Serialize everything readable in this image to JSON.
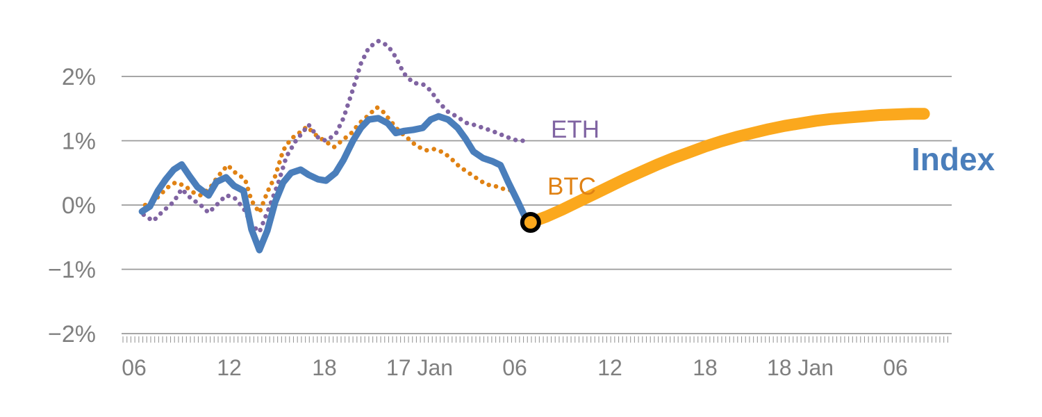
{
  "chart_data": {
    "type": "line",
    "title": "",
    "xlabel": "",
    "ylabel": "",
    "x_unit": "hours (x ticks are clock hours; 17 Jan / 18 Jan mark midnight of those dates)",
    "ylim": [
      -2,
      2
    ],
    "grid": "horizontal",
    "legend_position": "inline-labels",
    "y_ticks": [
      {
        "value": 2,
        "label": "2%"
      },
      {
        "value": 1,
        "label": "1%"
      },
      {
        "value": 0,
        "label": "0%"
      },
      {
        "value": -1,
        "label": "−1%"
      },
      {
        "value": -2,
        "label": "−2%"
      }
    ],
    "x_ticks": [
      {
        "hour": 6,
        "label": "06"
      },
      {
        "hour": 12,
        "label": "12"
      },
      {
        "hour": 18,
        "label": "18"
      },
      {
        "hour": 24,
        "label": "17 Jan"
      },
      {
        "hour": 30,
        "label": "06"
      },
      {
        "hour": 36,
        "label": "12"
      },
      {
        "hour": 42,
        "label": "18"
      },
      {
        "hour": 48,
        "label": "18 Jan"
      },
      {
        "hour": 54,
        "label": "06"
      }
    ],
    "colors": {
      "index": "#4A7EBB",
      "eth": "#8064A2",
      "btc": "#E08214",
      "forecast": "#FBA81D",
      "grid": "#9A9A9A",
      "axis_text": "#7F7F7F",
      "marker_ring": "#000000"
    },
    "labels": {
      "eth": "ETH",
      "btc": "BTC",
      "index": "Index"
    },
    "series": [
      {
        "name": "BTC",
        "style": "dotted",
        "color_key": "btc",
        "points": [
          [
            6.7,
            0.0
          ],
          [
            7.4,
            0.1
          ],
          [
            8.1,
            0.27
          ],
          [
            8.6,
            0.35
          ],
          [
            9.2,
            0.3
          ],
          [
            9.7,
            0.2
          ],
          [
            10.2,
            0.15
          ],
          [
            10.8,
            0.27
          ],
          [
            11.3,
            0.45
          ],
          [
            11.9,
            0.62
          ],
          [
            12.4,
            0.5
          ],
          [
            13.0,
            0.4
          ],
          [
            13.4,
            0.07
          ],
          [
            13.9,
            -0.12
          ],
          [
            14.4,
            0.2
          ],
          [
            14.9,
            0.45
          ],
          [
            15.4,
            0.85
          ],
          [
            15.9,
            1.03
          ],
          [
            16.4,
            1.12
          ],
          [
            16.9,
            1.22
          ],
          [
            17.5,
            1.08
          ],
          [
            18.0,
            1.0
          ],
          [
            18.6,
            0.9
          ],
          [
            19.1,
            1.0
          ],
          [
            19.7,
            1.12
          ],
          [
            20.2,
            1.27
          ],
          [
            20.8,
            1.4
          ],
          [
            21.3,
            1.52
          ],
          [
            21.7,
            1.45
          ],
          [
            22.2,
            1.3
          ],
          [
            22.7,
            1.15
          ],
          [
            23.3,
            1.03
          ],
          [
            23.8,
            0.92
          ],
          [
            24.4,
            0.85
          ],
          [
            24.9,
            0.87
          ],
          [
            25.5,
            0.82
          ],
          [
            26.0,
            0.72
          ],
          [
            26.5,
            0.6
          ],
          [
            27.1,
            0.5
          ],
          [
            27.7,
            0.4
          ],
          [
            28.2,
            0.32
          ],
          [
            28.7,
            0.3
          ],
          [
            29.3,
            0.25
          ],
          [
            29.9,
            0.22
          ]
        ]
      },
      {
        "name": "ETH",
        "style": "dotted",
        "color_key": "eth",
        "points": [
          [
            6.6,
            -0.15
          ],
          [
            7.2,
            -0.25
          ],
          [
            7.8,
            -0.1
          ],
          [
            8.5,
            0.05
          ],
          [
            9.0,
            0.25
          ],
          [
            9.6,
            0.1
          ],
          [
            10.2,
            0.0
          ],
          [
            10.7,
            -0.12
          ],
          [
            11.2,
            0.0
          ],
          [
            11.8,
            0.15
          ],
          [
            12.3,
            0.12
          ],
          [
            12.9,
            -0.05
          ],
          [
            13.4,
            -0.3
          ],
          [
            13.9,
            -0.42
          ],
          [
            14.5,
            -0.05
          ],
          [
            15.1,
            0.35
          ],
          [
            15.6,
            0.75
          ],
          [
            16.2,
            1.0
          ],
          [
            16.7,
            1.15
          ],
          [
            17.0,
            1.25
          ],
          [
            17.6,
            1.05
          ],
          [
            18.1,
            1.0
          ],
          [
            18.7,
            1.1
          ],
          [
            19.2,
            1.35
          ],
          [
            19.8,
            1.8
          ],
          [
            20.3,
            2.2
          ],
          [
            20.8,
            2.45
          ],
          [
            21.4,
            2.55
          ],
          [
            22.0,
            2.48
          ],
          [
            22.5,
            2.3
          ],
          [
            23.0,
            2.05
          ],
          [
            23.6,
            1.9
          ],
          [
            24.2,
            1.88
          ],
          [
            24.7,
            1.78
          ],
          [
            25.2,
            1.6
          ],
          [
            25.8,
            1.45
          ],
          [
            26.4,
            1.37
          ],
          [
            26.9,
            1.28
          ],
          [
            27.4,
            1.25
          ],
          [
            28.0,
            1.2
          ],
          [
            28.6,
            1.15
          ],
          [
            29.1,
            1.1
          ],
          [
            29.6,
            1.05
          ],
          [
            30.2,
            1.0
          ],
          [
            30.8,
            1.0
          ]
        ]
      },
      {
        "name": "Index",
        "style": "solid",
        "color_key": "index",
        "points": [
          [
            6.5,
            -0.1
          ],
          [
            7.0,
            -0.02
          ],
          [
            7.5,
            0.22
          ],
          [
            8.0,
            0.4
          ],
          [
            8.5,
            0.55
          ],
          [
            9.0,
            0.63
          ],
          [
            9.5,
            0.45
          ],
          [
            10.0,
            0.28
          ],
          [
            10.7,
            0.15
          ],
          [
            11.2,
            0.36
          ],
          [
            11.8,
            0.43
          ],
          [
            12.3,
            0.3
          ],
          [
            12.9,
            0.22
          ],
          [
            13.4,
            -0.38
          ],
          [
            13.9,
            -0.7
          ],
          [
            14.4,
            -0.4
          ],
          [
            14.9,
            0.05
          ],
          [
            15.4,
            0.35
          ],
          [
            15.9,
            0.5
          ],
          [
            16.5,
            0.55
          ],
          [
            17.0,
            0.47
          ],
          [
            17.6,
            0.4
          ],
          [
            18.1,
            0.38
          ],
          [
            18.7,
            0.5
          ],
          [
            19.2,
            0.7
          ],
          [
            19.8,
            1.0
          ],
          [
            20.3,
            1.2
          ],
          [
            20.8,
            1.33
          ],
          [
            21.4,
            1.35
          ],
          [
            22.0,
            1.27
          ],
          [
            22.5,
            1.12
          ],
          [
            23.0,
            1.15
          ],
          [
            23.6,
            1.17
          ],
          [
            24.2,
            1.2
          ],
          [
            24.7,
            1.33
          ],
          [
            25.2,
            1.38
          ],
          [
            25.8,
            1.33
          ],
          [
            26.4,
            1.2
          ],
          [
            26.9,
            1.03
          ],
          [
            27.4,
            0.83
          ],
          [
            28.0,
            0.73
          ],
          [
            28.6,
            0.68
          ],
          [
            29.1,
            0.62
          ],
          [
            29.6,
            0.35
          ],
          [
            30.2,
            0.05
          ],
          [
            30.6,
            -0.16
          ],
          [
            31.0,
            -0.27
          ]
        ]
      },
      {
        "name": "Index forecast",
        "style": "forecast",
        "color_key": "forecast",
        "points": [
          [
            31.0,
            -0.27
          ],
          [
            32.0,
            -0.18
          ],
          [
            33.0,
            -0.07
          ],
          [
            34.0,
            0.05
          ],
          [
            35.0,
            0.17
          ],
          [
            36.0,
            0.29
          ],
          [
            37.0,
            0.41
          ],
          [
            38.0,
            0.52
          ],
          [
            39.0,
            0.63
          ],
          [
            40.0,
            0.73
          ],
          [
            41.0,
            0.82
          ],
          [
            42.0,
            0.91
          ],
          [
            43.0,
            0.99
          ],
          [
            44.0,
            1.06
          ],
          [
            45.0,
            1.12
          ],
          [
            46.0,
            1.18
          ],
          [
            47.0,
            1.23
          ],
          [
            48.0,
            1.27
          ],
          [
            49.0,
            1.31
          ],
          [
            50.0,
            1.34
          ],
          [
            51.0,
            1.36
          ],
          [
            52.0,
            1.38
          ],
          [
            53.0,
            1.4
          ],
          [
            54.0,
            1.41
          ],
          [
            55.0,
            1.42
          ],
          [
            55.8,
            1.42
          ]
        ]
      }
    ],
    "marker": {
      "hour": 31.0,
      "value": -0.27,
      "meaning": "junction between realized index and forecast"
    }
  }
}
